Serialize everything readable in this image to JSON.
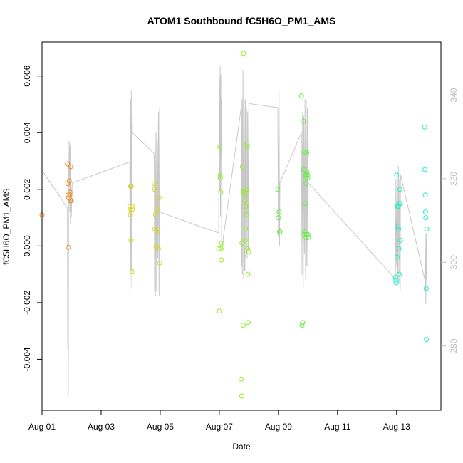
{
  "chart_data": {
    "type": "scatter",
    "title": "ATOM1 Southbound fC5H6O_PM1_AMS",
    "xlabel": "Date",
    "ylabel": "fC5H6O_PM1_AMS",
    "x_ticks": [
      "Aug 01",
      "Aug 03",
      "Aug 05",
      "Aug 07",
      "Aug 09",
      "Aug 11",
      "Aug 13"
    ],
    "x_range_days": [
      0.0,
      13.5
    ],
    "ylim": [
      -0.0058,
      0.0072
    ],
    "y_ticks": [
      -0.004,
      -0.002,
      0.0,
      0.002,
      0.004,
      0.006
    ],
    "y_tick_labels": [
      "-0.004",
      "-0.002",
      "0.000",
      "0.002",
      "0.004",
      "0.006"
    ],
    "right_axis": {
      "ylim": [
        264.6,
        352.7
      ],
      "ticks": [
        280,
        300,
        320,
        340
      ],
      "tick_labels": [
        "280",
        "300",
        "320",
        "340"
      ],
      "color": "#bdbdbd"
    },
    "series": [
      {
        "kind": "points",
        "colors": [
          "#f28a1c",
          "#f28a1c",
          "#f28a1c",
          "#f28a1c",
          "#f28a1c",
          "#f28a1c",
          "#f28a1c",
          "#f28a1c",
          "#f28a1c",
          "#f28a1c",
          "#f28a1c",
          "#f28a1c"
        ],
        "x": [
          0.0,
          0.86,
          0.87,
          0.88,
          0.89,
          0.9,
          0.92,
          0.94,
          0.95,
          0.96,
          0.97,
          0.99
        ],
        "y": [
          0.0011,
          0.0029,
          0.0022,
          0.0018,
          -5e-05,
          0.0017,
          0.0023,
          0.0018,
          0.0019,
          0.0016,
          0.0028,
          0.0016
        ]
      },
      {
        "kind": "points",
        "colors": [
          "#d7d71a",
          "#d7d71a",
          "#d7d71a",
          "#d7d71a",
          "#d7d71a",
          "#d7d71a",
          "#d7d71a",
          "#d7d71a",
          "#d7d71a",
          "#d7d71a",
          "#d7d71a",
          "#d7d71a",
          "#d7d71a",
          "#d7d71a",
          "#d7d71a",
          "#d7d71a",
          "#d7d71a",
          "#d7d71a",
          "#d7d71a",
          "#d7d71a"
        ],
        "x": [
          2.97,
          2.98,
          2.99,
          3.0,
          3.01,
          3.02,
          3.04,
          3.05,
          3.06,
          3.8,
          3.81,
          3.82,
          3.84,
          3.86,
          3.88,
          3.9,
          3.92,
          3.94,
          3.96,
          3.98
        ],
        "y": [
          0.0014,
          0.0013,
          0.0011,
          0.0021,
          0.0002,
          0.0021,
          -0.0009,
          0.0014,
          0.0013,
          0.0022,
          0.002,
          0.0006,
          0.0011,
          -2e-05,
          0.0005,
          0.0013,
          0.0006,
          -0.0001,
          0.0017,
          -0.0006
        ]
      },
      {
        "kind": "points",
        "colors": [
          "#8ff01c",
          "#8ff01c",
          "#8ff01c",
          "#8ff01c",
          "#8ff01c",
          "#8ff01c",
          "#8ff01c",
          "#8ff01c",
          "#8ff01c",
          "#8ff01c",
          "#8ff01c",
          "#8ff01c",
          "#8ff01c",
          "#8ff01c",
          "#8ff01c",
          "#8ff01c",
          "#8ff01c",
          "#8ff01c",
          "#8ff01c",
          "#8ff01c",
          "#8ff01c",
          "#8ff01c",
          "#8ff01c",
          "#8ff01c",
          "#8ff01c",
          "#8ff01c",
          "#8ff01c",
          "#8ff01c",
          "#8ff01c",
          "#8ff01c"
        ],
        "x": [
          5.98,
          6.0,
          6.02,
          6.03,
          6.04,
          6.05,
          6.06,
          6.07,
          6.08,
          6.74,
          6.76,
          6.77,
          6.78,
          6.8,
          6.81,
          6.82,
          6.84,
          6.86,
          6.87,
          6.88,
          6.89,
          6.9,
          6.92,
          6.93,
          6.94,
          6.95,
          6.96,
          6.97,
          6.98,
          6.99
        ],
        "y": [
          -0.0001,
          -0.0023,
          0.0035,
          0.0025,
          0.0024,
          0.0019,
          -0.0001,
          -0.0005,
          0.0001,
          -0.0047,
          -0.0053,
          0.0001,
          0.0028,
          0.0019,
          -0.0028,
          0.0068,
          0.0019,
          0.0016,
          0.0018,
          0.0002,
          0.0006,
          0.0014,
          0.0011,
          0.002,
          0.0036,
          0.0035,
          -0.0001,
          -0.001,
          -0.0027,
          -0.0002
        ]
      },
      {
        "kind": "points",
        "colors": [
          "#5cf03c",
          "#5cf03c",
          "#5cf03c",
          "#5cf03c",
          "#5cf03c",
          "#5cf03c",
          "#5cf03c",
          "#5cf03c",
          "#5cf03c",
          "#5cf03c",
          "#5cf03c",
          "#5cf03c",
          "#5cf03c",
          "#5cf03c",
          "#5cf03c",
          "#5cf03c",
          "#5cf03c",
          "#5cf03c",
          "#5cf03c",
          "#5cf03c",
          "#5cf03c",
          "#5cf03c",
          "#5cf03c",
          "#5cf03c",
          "#5cf03c"
        ],
        "x": [
          7.98,
          8.0,
          8.02,
          8.04,
          8.05,
          8.78,
          8.8,
          8.82,
          8.84,
          8.86,
          8.87,
          8.88,
          8.89,
          8.9,
          8.91,
          8.92,
          8.93,
          8.94,
          8.95,
          8.96,
          8.97,
          8.98,
          8.99,
          9.0,
          9.01
        ],
        "y": [
          0.002,
          0.001,
          0.0012,
          0.0005,
          0.0005,
          0.0053,
          -0.0028,
          -0.0027,
          0.0044,
          0.0027,
          0.0004,
          0.0033,
          0.0005,
          0.0015,
          0.0024,
          0.0003,
          0.0025,
          0.0022,
          0.0004,
          0.0033,
          0.0026,
          0.0025,
          0.0024,
          0.0004,
          0.0003
        ]
      },
      {
        "kind": "points",
        "colors": [
          "#1ef0c8",
          "#1ef0c8",
          "#1ef0c8",
          "#1ef0c8",
          "#1ef0c8",
          "#1ef0c8",
          "#1ef0c8",
          "#1ef0c8",
          "#1ef0c8",
          "#1ef0c8",
          "#1ef0c8",
          "#1ef0c8",
          "#1ef0c8",
          "#1ef0c8",
          "#1ef0c8",
          "#1ef0c8",
          "#1ef0c8",
          "#1ef0c8",
          "#1ef0c8",
          "#1ef0c8",
          "#1ef0c8",
          "#1ef0c8",
          "#1ef0c8"
        ],
        "x": [
          11.96,
          11.98,
          11.99,
          12.0,
          12.02,
          12.04,
          12.05,
          12.06,
          12.07,
          12.08,
          12.09,
          12.1,
          12.11,
          12.12,
          12.13,
          12.95,
          12.96,
          12.97,
          12.98,
          12.99,
          13.0,
          13.01,
          13.02
        ],
        "y": [
          -0.0011,
          -0.0012,
          -0.0013,
          0.0025,
          -0.0004,
          0.0014,
          0.0007,
          0.0014,
          0.0006,
          -0.0001,
          -0.001,
          0.0015,
          0.002,
          0.0015,
          0.0002,
          0.0042,
          0.0027,
          0.0018,
          0.0012,
          0.001,
          -0.0015,
          -0.0033,
          0.0006
        ]
      }
    ],
    "line": {
      "color": "#c8c8c8",
      "axis": "right",
      "x": [
        0.0,
        0.86,
        0.87,
        0.88,
        0.89,
        0.9,
        0.92,
        0.94,
        0.95,
        0.96,
        0.97,
        0.99,
        1.02,
        2.97,
        2.98,
        3.0,
        3.01,
        3.02,
        3.04,
        3.05,
        3.06,
        3.8,
        3.81,
        3.82,
        3.84,
        3.86,
        3.88,
        3.9,
        3.92,
        3.94,
        3.96,
        3.98,
        3.99,
        5.98,
        6.0,
        6.02,
        6.03,
        6.04,
        6.05,
        6.06,
        6.07,
        6.08,
        6.74,
        6.76,
        6.77,
        6.78,
        6.8,
        6.82,
        6.84,
        6.86,
        6.88,
        6.9,
        6.92,
        6.94,
        6.96,
        6.98,
        7.0,
        7.98,
        8.0,
        8.02,
        8.04,
        8.05,
        8.78,
        8.8,
        8.82,
        8.84,
        8.86,
        8.88,
        8.9,
        8.92,
        8.94,
        8.96,
        8.98,
        9.0,
        9.01,
        11.96,
        11.98,
        11.99,
        12.0,
        12.02,
        12.04,
        12.06,
        12.08,
        12.1,
        12.12,
        12.13,
        12.95,
        12.97,
        12.99,
        13.01,
        13.02
      ],
      "y": [
        322,
        313,
        279,
        322,
        268,
        318,
        329,
        312,
        328,
        309,
        325,
        311,
        319,
        324,
        292,
        339,
        298,
        341,
        294,
        336,
        331,
        326,
        293,
        336,
        292,
        331,
        293,
        329,
        301,
        336,
        292,
        337,
        312,
        307,
        344,
        317,
        347,
        311,
        345,
        325,
        339,
        303,
        337,
        299,
        339,
        297,
        346,
        296,
        339,
        298,
        339,
        298,
        337,
        301,
        336,
        303,
        338,
        337,
        306,
        341,
        304,
        319,
        331,
        297,
        336,
        294,
        335,
        302,
        339,
        296,
        339,
        299,
        337,
        299,
        319,
        296,
        320,
        302,
        299,
        320,
        296,
        323,
        295,
        320,
        293,
        321,
        296,
        307,
        290,
        307,
        296
      ]
    }
  }
}
